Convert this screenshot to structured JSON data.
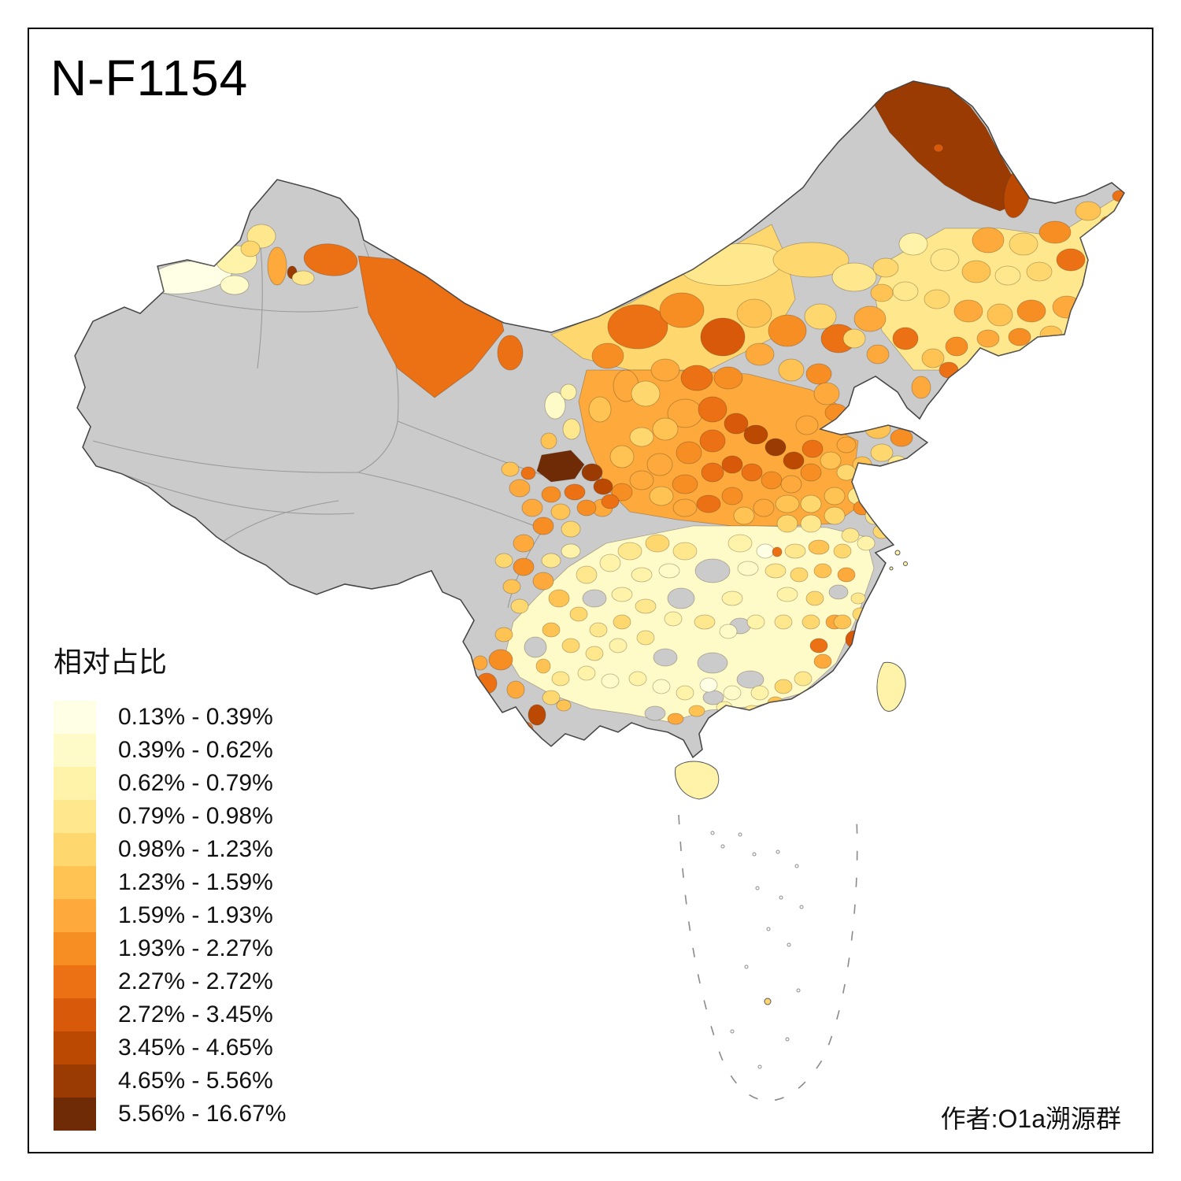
{
  "figure": {
    "title": "N-F1154",
    "attribution": "作者:O1a溯源群"
  },
  "legend": {
    "title": "相对占比",
    "no_data_color": "#CBCBCB",
    "items": [
      {
        "label": "0.13% - 0.39%",
        "color": "#FFFFE5"
      },
      {
        "label": "0.39% - 0.62%",
        "color": "#FFFBC8"
      },
      {
        "label": "0.62% - 0.79%",
        "color": "#FEF3A8"
      },
      {
        "label": "0.79% - 0.98%",
        "color": "#FEE78C"
      },
      {
        "label": "0.98% - 1.23%",
        "color": "#FED86E"
      },
      {
        "label": "1.23% - 1.59%",
        "color": "#FEC352"
      },
      {
        "label": "1.59% - 1.93%",
        "color": "#FDA93B"
      },
      {
        "label": "1.93% - 2.27%",
        "color": "#F78E24"
      },
      {
        "label": "2.27% - 2.72%",
        "color": "#EC7014"
      },
      {
        "label": "2.72% - 3.45%",
        "color": "#D8590A"
      },
      {
        "label": "3.45% - 4.65%",
        "color": "#BC4902"
      },
      {
        "label": "4.65% - 5.56%",
        "color": "#993B03"
      },
      {
        "label": "5.56% - 16.67%",
        "color": "#6F2B05"
      }
    ]
  }
}
